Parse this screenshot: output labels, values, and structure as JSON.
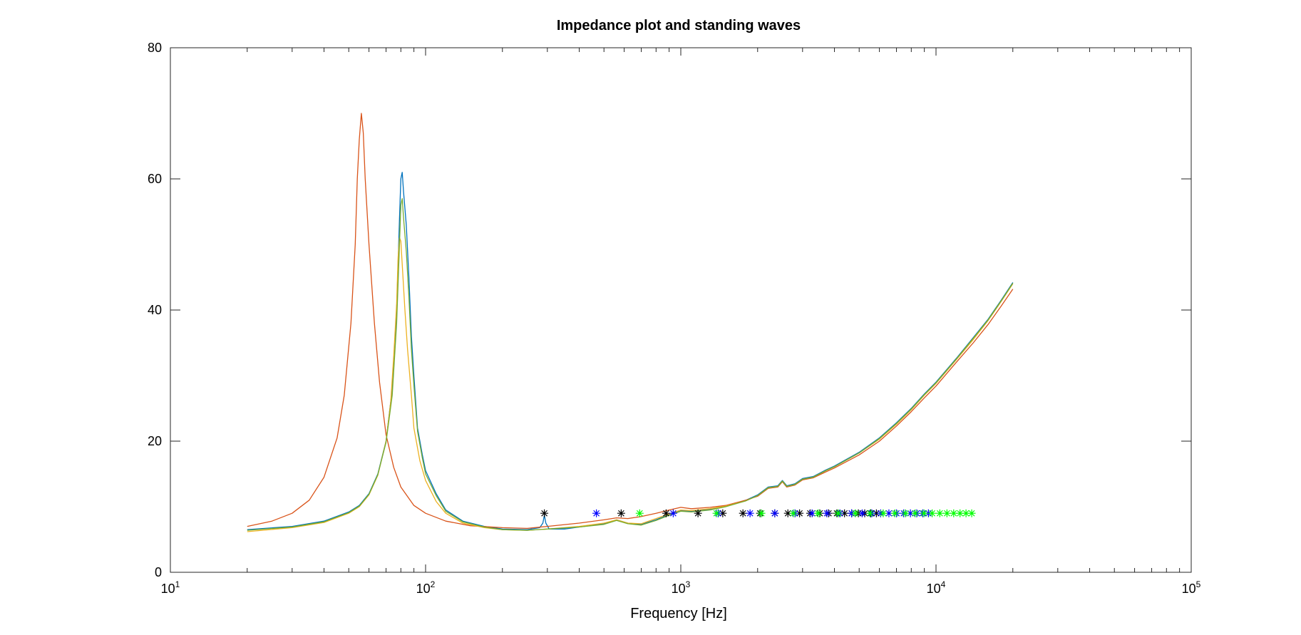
{
  "chart_data": {
    "type": "line",
    "title": "Impedance plot and standing waves",
    "xlabel": "Frequency [Hz]",
    "ylabel": "",
    "x_scale": "log",
    "xlim": [
      10,
      100000
    ],
    "ylim": [
      0,
      80
    ],
    "grid": false,
    "legend": "none",
    "x_ticks": [
      {
        "base": "10",
        "exp": "1",
        "value": 10
      },
      {
        "base": "10",
        "exp": "2",
        "value": 100
      },
      {
        "base": "10",
        "exp": "3",
        "value": 1000
      },
      {
        "base": "10",
        "exp": "4",
        "value": 10000
      },
      {
        "base": "10",
        "exp": "5",
        "value": 100000
      }
    ],
    "y_ticks": [
      "0",
      "20",
      "40",
      "60",
      "80"
    ],
    "series": [
      {
        "color": "#0072bd",
        "points": [
          [
            20,
            6.5
          ],
          [
            30,
            7.0
          ],
          [
            40,
            7.8
          ],
          [
            50,
            9.2
          ],
          [
            55,
            10.2
          ],
          [
            60,
            12.0
          ],
          [
            65,
            15.0
          ],
          [
            70,
            20.0
          ],
          [
            74,
            28.0
          ],
          [
            77,
            40.0
          ],
          [
            79,
            54.0
          ],
          [
            80,
            60.0
          ],
          [
            81,
            61.0
          ],
          [
            82,
            58.0
          ],
          [
            84,
            53.0
          ],
          [
            86,
            45.0
          ],
          [
            88,
            36.0
          ],
          [
            90,
            30.0
          ],
          [
            93,
            22.0
          ],
          [
            97,
            18.0
          ],
          [
            100,
            15.5
          ],
          [
            110,
            12.0
          ],
          [
            120,
            9.5
          ],
          [
            140,
            7.8
          ],
          [
            170,
            7.0
          ],
          [
            200,
            6.6
          ],
          [
            250,
            6.5
          ],
          [
            280,
            6.8
          ],
          [
            288,
            7.5
          ],
          [
            292,
            8.7
          ],
          [
            296,
            7.5
          ],
          [
            305,
            6.6
          ],
          [
            350,
            6.6
          ],
          [
            400,
            6.9
          ],
          [
            500,
            7.4
          ],
          [
            560,
            8.0
          ],
          [
            620,
            7.5
          ],
          [
            700,
            7.3
          ],
          [
            800,
            8.0
          ],
          [
            900,
            8.8
          ],
          [
            1000,
            9.4
          ],
          [
            1100,
            9.3
          ],
          [
            1300,
            9.6
          ],
          [
            1500,
            10.1
          ],
          [
            1800,
            11.0
          ],
          [
            2000,
            11.8
          ],
          [
            2200,
            13.0
          ],
          [
            2400,
            13.2
          ],
          [
            2500,
            14.0
          ],
          [
            2600,
            13.2
          ],
          [
            2800,
            13.5
          ],
          [
            3000,
            14.3
          ],
          [
            3300,
            14.6
          ],
          [
            3700,
            15.6
          ],
          [
            4000,
            16.2
          ],
          [
            5000,
            18.3
          ],
          [
            6000,
            20.5
          ],
          [
            7000,
            22.8
          ],
          [
            8000,
            25.0
          ],
          [
            9000,
            27.2
          ],
          [
            10000,
            29.0
          ],
          [
            12000,
            32.6
          ],
          [
            14000,
            35.8
          ],
          [
            16000,
            38.6
          ],
          [
            18000,
            41.5
          ],
          [
            20000,
            44.2
          ]
        ]
      },
      {
        "color": "#d95319",
        "points": [
          [
            20,
            7.0
          ],
          [
            25,
            7.8
          ],
          [
            30,
            9.0
          ],
          [
            35,
            11.0
          ],
          [
            40,
            14.5
          ],
          [
            45,
            20.5
          ],
          [
            48,
            27.0
          ],
          [
            51,
            38.0
          ],
          [
            53,
            50.0
          ],
          [
            54,
            60.0
          ],
          [
            55,
            66.0
          ],
          [
            56,
            70.0
          ],
          [
            57,
            67.0
          ],
          [
            58,
            60.0
          ],
          [
            60,
            50.0
          ],
          [
            63,
            38.0
          ],
          [
            66,
            29.0
          ],
          [
            70,
            21.0
          ],
          [
            75,
            16.0
          ],
          [
            80,
            13.0
          ],
          [
            90,
            10.2
          ],
          [
            100,
            9.0
          ],
          [
            120,
            7.8
          ],
          [
            150,
            7.1
          ],
          [
            200,
            6.8
          ],
          [
            250,
            6.7
          ],
          [
            300,
            7.0
          ],
          [
            400,
            7.5
          ],
          [
            500,
            8.0
          ],
          [
            560,
            8.3
          ],
          [
            620,
            8.2
          ],
          [
            700,
            8.5
          ],
          [
            800,
            9.0
          ],
          [
            900,
            9.5
          ],
          [
            1000,
            9.9
          ],
          [
            1100,
            9.7
          ],
          [
            1300,
            9.9
          ],
          [
            1500,
            10.2
          ],
          [
            1800,
            11.0
          ],
          [
            2000,
            11.6
          ],
          [
            2200,
            12.8
          ],
          [
            2400,
            13.0
          ],
          [
            2500,
            13.8
          ],
          [
            2600,
            13.0
          ],
          [
            2800,
            13.3
          ],
          [
            3000,
            14.1
          ],
          [
            3300,
            14.4
          ],
          [
            3700,
            15.3
          ],
          [
            4000,
            15.9
          ],
          [
            5000,
            17.9
          ],
          [
            6000,
            20.0
          ],
          [
            7000,
            22.3
          ],
          [
            8000,
            24.5
          ],
          [
            9000,
            26.6
          ],
          [
            10000,
            28.4
          ],
          [
            12000,
            32.0
          ],
          [
            14000,
            35.0
          ],
          [
            16000,
            37.8
          ],
          [
            18000,
            40.6
          ],
          [
            20000,
            43.2
          ]
        ]
      },
      {
        "color": "#edb120",
        "points": [
          [
            20,
            6.2
          ],
          [
            30,
            6.8
          ],
          [
            40,
            7.6
          ],
          [
            50,
            9.0
          ],
          [
            55,
            10.0
          ],
          [
            60,
            11.8
          ],
          [
            65,
            14.8
          ],
          [
            70,
            20.0
          ],
          [
            73,
            26.0
          ],
          [
            75,
            33.0
          ],
          [
            77,
            41.0
          ],
          [
            78,
            48.0
          ],
          [
            79,
            51.0
          ],
          [
            80,
            50.5
          ],
          [
            81,
            47.0
          ],
          [
            83,
            40.0
          ],
          [
            85,
            34.0
          ],
          [
            88,
            27.0
          ],
          [
            90,
            22.0
          ],
          [
            95,
            17.0
          ],
          [
            100,
            14.0
          ],
          [
            110,
            10.8
          ],
          [
            120,
            9.0
          ],
          [
            140,
            7.5
          ],
          [
            170,
            6.8
          ],
          [
            200,
            6.5
          ],
          [
            250,
            6.4
          ],
          [
            300,
            6.6
          ],
          [
            400,
            7.0
          ],
          [
            500,
            7.5
          ],
          [
            560,
            8.0
          ],
          [
            620,
            7.5
          ],
          [
            700,
            7.4
          ],
          [
            800,
            8.2
          ],
          [
            900,
            8.9
          ],
          [
            1000,
            9.5
          ],
          [
            1100,
            9.4
          ],
          [
            1300,
            9.7
          ],
          [
            1500,
            10.1
          ],
          [
            1800,
            10.9
          ],
          [
            2000,
            11.7
          ],
          [
            2200,
            12.9
          ],
          [
            2400,
            13.1
          ],
          [
            2500,
            13.9
          ],
          [
            2600,
            13.1
          ],
          [
            2800,
            13.4
          ],
          [
            3000,
            14.2
          ],
          [
            3300,
            14.5
          ],
          [
            3700,
            15.5
          ],
          [
            4000,
            16.1
          ],
          [
            5000,
            18.2
          ],
          [
            6000,
            20.3
          ],
          [
            7000,
            22.6
          ],
          [
            8000,
            24.8
          ],
          [
            9000,
            27.0
          ],
          [
            10000,
            28.8
          ],
          [
            12000,
            32.4
          ],
          [
            14000,
            35.5
          ],
          [
            16000,
            38.4
          ],
          [
            18000,
            41.3
          ],
          [
            20000,
            44.0
          ]
        ]
      },
      {
        "color": "#77ac30",
        "points": [
          [
            20,
            6.4
          ],
          [
            30,
            6.9
          ],
          [
            40,
            7.7
          ],
          [
            50,
            9.1
          ],
          [
            55,
            10.1
          ],
          [
            60,
            11.9
          ],
          [
            65,
            14.9
          ],
          [
            70,
            19.8
          ],
          [
            74,
            27.0
          ],
          [
            77,
            38.0
          ],
          [
            79,
            50.0
          ],
          [
            80,
            56.0
          ],
          [
            81,
            57.0
          ],
          [
            82,
            54.0
          ],
          [
            84,
            49.0
          ],
          [
            86,
            42.0
          ],
          [
            88,
            34.0
          ],
          [
            90,
            28.5
          ],
          [
            93,
            21.5
          ],
          [
            97,
            17.5
          ],
          [
            100,
            15.0
          ],
          [
            110,
            11.7
          ],
          [
            120,
            9.3
          ],
          [
            140,
            7.7
          ],
          [
            170,
            6.9
          ],
          [
            200,
            6.5
          ],
          [
            250,
            6.4
          ],
          [
            300,
            6.6
          ],
          [
            400,
            6.9
          ],
          [
            500,
            7.3
          ],
          [
            560,
            7.9
          ],
          [
            620,
            7.4
          ],
          [
            700,
            7.2
          ],
          [
            800,
            7.9
          ],
          [
            900,
            8.7
          ],
          [
            1000,
            9.3
          ],
          [
            1100,
            9.2
          ],
          [
            1300,
            9.5
          ],
          [
            1500,
            10.0
          ],
          [
            1800,
            10.9
          ],
          [
            2000,
            11.7
          ],
          [
            2200,
            12.9
          ],
          [
            2400,
            13.1
          ],
          [
            2500,
            13.9
          ],
          [
            2600,
            13.1
          ],
          [
            2800,
            13.4
          ],
          [
            3000,
            14.2
          ],
          [
            3300,
            14.5
          ],
          [
            3700,
            15.5
          ],
          [
            4000,
            16.1
          ],
          [
            5000,
            18.2
          ],
          [
            6000,
            20.4
          ],
          [
            7000,
            22.7
          ],
          [
            8000,
            24.9
          ],
          [
            9000,
            27.1
          ],
          [
            10000,
            28.9
          ],
          [
            12000,
            32.5
          ],
          [
            14000,
            35.7
          ],
          [
            16000,
            38.5
          ],
          [
            18000,
            41.4
          ],
          [
            20000,
            44.1
          ]
        ]
      }
    ],
    "markers": [
      {
        "color": "#000000",
        "symbol": "*",
        "y": 9,
        "x": [
          292,
          584,
          876,
          1168,
          1460,
          1752,
          2044,
          2336,
          2628,
          2920,
          3212,
          3504,
          3796,
          4088,
          4380,
          4672,
          4964,
          5256,
          5548,
          5840
        ]
      },
      {
        "color": "#0000ff",
        "symbol": "*",
        "y": 9,
        "x": [
          467,
          934,
          1401,
          1868,
          2335,
          2802,
          3269,
          3736,
          4203,
          4670,
          5137,
          5604,
          6071,
          6538,
          7005,
          7472,
          7939,
          8406,
          8873,
          9340
        ]
      },
      {
        "color": "#00ff00",
        "symbol": "*",
        "y": 9,
        "x": [
          690,
          1380,
          2070,
          2760,
          3450,
          4140,
          4830,
          5520,
          6210,
          6900,
          7590,
          8280,
          8970,
          9660,
          10350,
          11040,
          11730,
          12420,
          13110,
          13800
        ]
      }
    ]
  }
}
